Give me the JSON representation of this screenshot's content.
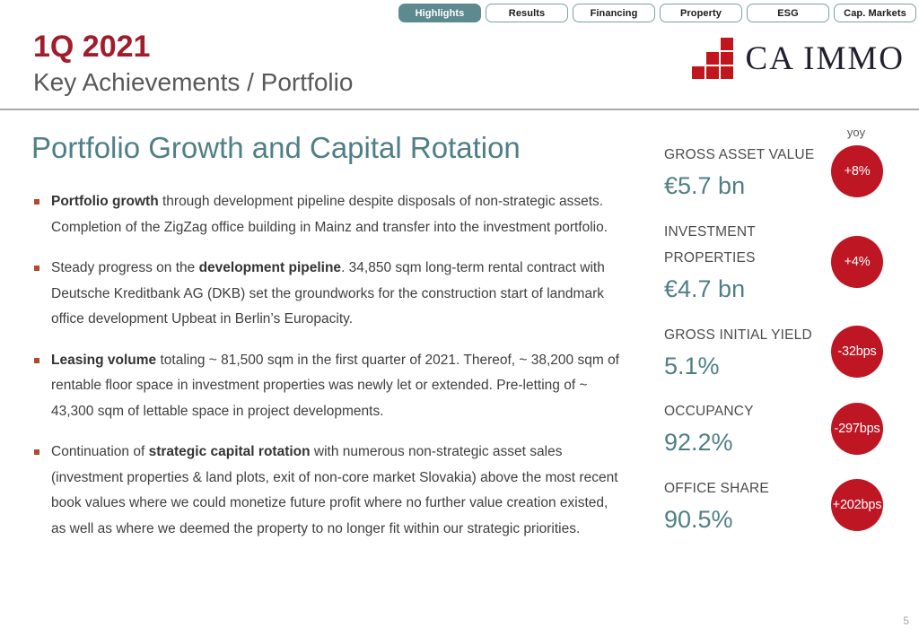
{
  "tabs": {
    "items": [
      {
        "label": "Highlights",
        "active": true
      },
      {
        "label": "Results",
        "active": false
      },
      {
        "label": "Financing",
        "active": false
      },
      {
        "label": "Property",
        "active": false
      },
      {
        "label": "ESG",
        "active": false
      },
      {
        "label": "Cap. Markets",
        "active": false
      }
    ]
  },
  "header": {
    "period": "1Q 2021",
    "subtitle": "Key Achievements / Portfolio"
  },
  "logo": {
    "text": "CA IMMO"
  },
  "main": {
    "title": "Portfolio Growth and Capital Rotation",
    "bullets": [
      {
        "segments": [
          {
            "bold": true,
            "text": "Portfolio growth"
          },
          {
            "bold": false,
            "text": " through development pipeline despite disposals of non-strategic assets. Completion of the ZigZag office building in Mainz and transfer into the investment portfolio."
          }
        ]
      },
      {
        "segments": [
          {
            "bold": false,
            "text": "Steady progress on the "
          },
          {
            "bold": true,
            "text": "development pipeline"
          },
          {
            "bold": false,
            "text": ". 34,850 sqm long-term rental contract with Deutsche Kreditbank AG (DKB) set the groundworks for the construction start of landmark office development Upbeat in Berlin’s Europacity."
          }
        ]
      },
      {
        "segments": [
          {
            "bold": true,
            "text": "Leasing volume"
          },
          {
            "bold": false,
            "text": " totaling ~ 81,500 sqm in the first quarter of 2021. Thereof, ~ 38,200 sqm of rentable floor space in investment properties was newly let or extended. Pre-letting of ~ 43,300 sqm of lettable space in project developments."
          }
        ]
      },
      {
        "segments": [
          {
            "bold": false,
            "text": "Continuation of "
          },
          {
            "bold": true,
            "text": "strategic capital rotation"
          },
          {
            "bold": false,
            "text": " with numerous non-strategic asset sales (investment properties & land plots, exit of non-core market Slovakia) above the most recent book values where we could monetize future profit where no further value creation existed, as well as where we deemed the property to no longer fit within our strategic priorities."
          }
        ]
      }
    ]
  },
  "kpis": {
    "yoy_label": "yoy",
    "items": [
      {
        "label": "GROSS ASSET VALUE",
        "value": "€5.7 bn",
        "change": "+8%"
      },
      {
        "label": "INVESTMENT PROPERTIES",
        "value": "€4.7 bn",
        "change": "+4%"
      },
      {
        "label": "GROSS INITIAL YIELD",
        "value": "5.1%",
        "change": "-32bps"
      },
      {
        "label": "OCCUPANCY",
        "value": "92.2%",
        "change": "-297bps"
      },
      {
        "label": "OFFICE SHARE",
        "value": "90.5%",
        "change": "+202bps"
      }
    ]
  },
  "footer": {
    "page_number": "5"
  },
  "colors": {
    "accent_red": "#be1622",
    "logo_red": "#c1161d",
    "header_red": "#a21c2b",
    "teal": "#4f7f86",
    "tab_active": "#5d8a8e"
  }
}
